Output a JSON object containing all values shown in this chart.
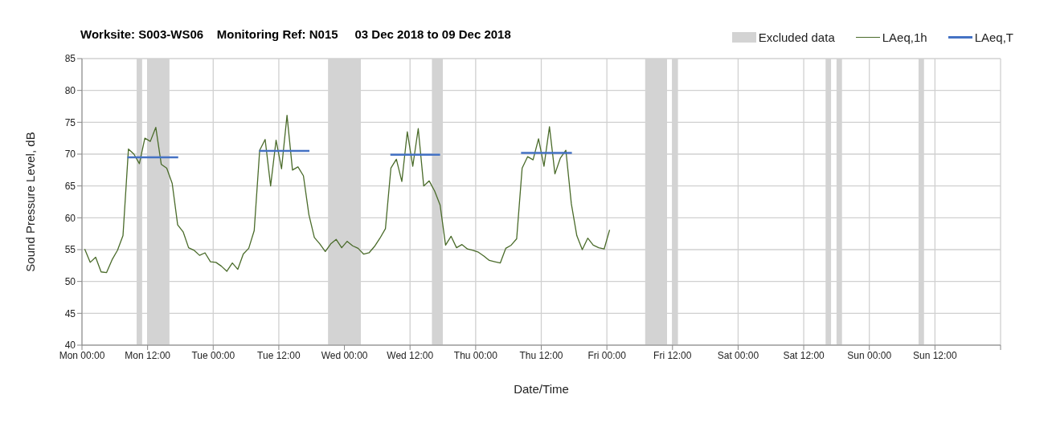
{
  "chart_data": {
    "type": "line",
    "title": "Worksite: S003-WS06    Monitoring Ref: N015     03 Dec 2018 to 09 Dec 2018",
    "xlabel": "Date/Time",
    "ylabel": "Sound Pressure Level, dB",
    "xlim": [
      "2018-12-03T00:00",
      "2018-12-10T00:00"
    ],
    "xticks": [
      {
        "value": "2018-12-03T00:00",
        "label": "Mon 00:00"
      },
      {
        "value": "2018-12-03T12:00",
        "label": "Mon 12:00"
      },
      {
        "value": "2018-12-04T00:00",
        "label": "Tue 00:00"
      },
      {
        "value": "2018-12-04T12:00",
        "label": "Tue 12:00"
      },
      {
        "value": "2018-12-05T00:00",
        "label": "Wed 00:00"
      },
      {
        "value": "2018-12-05T12:00",
        "label": "Wed 12:00"
      },
      {
        "value": "2018-12-06T00:00",
        "label": "Thu 00:00"
      },
      {
        "value": "2018-12-06T12:00",
        "label": "Thu 12:00"
      },
      {
        "value": "2018-12-07T00:00",
        "label": "Fri 00:00"
      },
      {
        "value": "2018-12-07T12:00",
        "label": "Fri 12:00"
      },
      {
        "value": "2018-12-08T00:00",
        "label": "Sat 00:00"
      },
      {
        "value": "2018-12-08T12:00",
        "label": "Sat 12:00"
      },
      {
        "value": "2018-12-09T00:00",
        "label": "Sun 00:00"
      },
      {
        "value": "2018-12-09T12:00",
        "label": "Sun 12:00"
      },
      {
        "value": "2018-12-10T00:00",
        "label": null
      }
    ],
    "ylim": [
      40,
      85
    ],
    "yticks": [
      40,
      45,
      50,
      55,
      60,
      65,
      70,
      75,
      80,
      85
    ],
    "grid": true,
    "legend": "top right",
    "marker": "none",
    "bands": [
      {
        "axis": "x",
        "from": "2018-12-03T10:00",
        "to": "2018-12-03T11:00",
        "label": "Excluded data",
        "color": "#d3d3d3"
      },
      {
        "axis": "x",
        "from": "2018-12-03T12:00",
        "to": "2018-12-03T16:00",
        "color": "#d3d3d3"
      },
      {
        "axis": "x",
        "from": "2018-12-04T21:00",
        "to": "2018-12-05T03:00",
        "color": "#d3d3d3"
      },
      {
        "axis": "x",
        "from": "2018-12-05T16:00",
        "to": "2018-12-05T18:00",
        "color": "#d3d3d3"
      },
      {
        "axis": "x",
        "from": "2018-12-07T07:00",
        "to": "2018-12-07T11:00",
        "color": "#d3d3d3"
      },
      {
        "axis": "x",
        "from": "2018-12-07T12:00",
        "to": "2018-12-07T13:00",
        "color": "#d3d3d3"
      },
      {
        "axis": "x",
        "from": "2018-12-08T16:00",
        "to": "2018-12-08T17:00",
        "color": "#d3d3d3"
      },
      {
        "axis": "x",
        "from": "2018-12-08T18:00",
        "to": "2018-12-08T19:00",
        "color": "#d3d3d3"
      },
      {
        "axis": "x",
        "from": "2018-12-09T09:00",
        "to": "2018-12-09T10:00",
        "color": "#d3d3d3"
      }
    ],
    "series": [
      {
        "name": "LAeq,1h",
        "color": "#4a6b2a",
        "x": [
          "2018-12-03T00:30",
          "2018-12-03T01:30",
          "2018-12-03T02:30",
          "2018-12-03T03:30",
          "2018-12-03T04:30",
          "2018-12-03T05:30",
          "2018-12-03T06:30",
          "2018-12-03T07:30",
          "2018-12-03T08:30",
          "2018-12-03T09:30",
          "2018-12-03T10:30",
          "2018-12-03T11:30",
          "2018-12-03T12:30",
          "2018-12-03T13:30",
          "2018-12-03T14:30",
          "2018-12-03T15:30",
          "2018-12-03T16:30",
          "2018-12-03T17:30",
          "2018-12-03T18:30",
          "2018-12-03T19:30",
          "2018-12-03T20:30",
          "2018-12-03T21:30",
          "2018-12-03T22:30",
          "2018-12-03T23:30",
          "2018-12-04T00:30",
          "2018-12-04T01:30",
          "2018-12-04T02:30",
          "2018-12-04T03:30",
          "2018-12-04T04:30",
          "2018-12-04T05:30",
          "2018-12-04T06:30",
          "2018-12-04T07:30",
          "2018-12-04T08:30",
          "2018-12-04T09:30",
          "2018-12-04T10:30",
          "2018-12-04T11:30",
          "2018-12-04T12:30",
          "2018-12-04T13:30",
          "2018-12-04T14:30",
          "2018-12-04T15:30",
          "2018-12-04T16:30",
          "2018-12-04T17:30",
          "2018-12-04T18:30",
          "2018-12-04T19:30",
          "2018-12-04T20:30",
          "2018-12-04T21:30",
          "2018-12-04T22:30",
          "2018-12-04T23:30",
          "2018-12-05T00:30",
          "2018-12-05T01:30",
          "2018-12-05T02:30",
          "2018-12-05T03:30",
          "2018-12-05T04:30",
          "2018-12-05T05:30",
          "2018-12-05T06:30",
          "2018-12-05T07:30",
          "2018-12-05T08:30",
          "2018-12-05T09:30",
          "2018-12-05T10:30",
          "2018-12-05T11:30",
          "2018-12-05T12:30",
          "2018-12-05T13:30",
          "2018-12-05T14:30",
          "2018-12-05T15:30",
          "2018-12-05T16:30",
          "2018-12-05T17:30",
          "2018-12-05T18:30",
          "2018-12-05T19:30",
          "2018-12-05T20:30",
          "2018-12-05T21:30",
          "2018-12-05T22:30",
          "2018-12-05T23:30",
          "2018-12-06T00:30",
          "2018-12-06T01:30",
          "2018-12-06T02:30",
          "2018-12-06T03:30",
          "2018-12-06T04:30",
          "2018-12-06T05:30",
          "2018-12-06T06:30",
          "2018-12-06T07:30",
          "2018-12-06T08:30",
          "2018-12-06T09:30",
          "2018-12-06T10:30",
          "2018-12-06T11:30",
          "2018-12-06T12:30",
          "2018-12-06T13:30",
          "2018-12-06T14:30",
          "2018-12-06T15:30",
          "2018-12-06T16:30",
          "2018-12-06T17:30",
          "2018-12-06T18:30",
          "2018-12-06T19:30",
          "2018-12-06T20:30",
          "2018-12-06T21:30",
          "2018-12-06T22:30",
          "2018-12-06T23:30",
          "2018-12-07T00:30"
        ],
        "values": [
          55.1,
          53.0,
          53.8,
          51.5,
          51.4,
          53.4,
          54.9,
          57.2,
          70.8,
          70.0,
          68.5,
          72.5,
          72.0,
          74.2,
          68.4,
          67.8,
          65.4,
          58.9,
          57.8,
          55.3,
          54.9,
          54.1,
          54.5,
          53.1,
          53.0,
          52.4,
          51.6,
          52.9,
          51.9,
          54.3,
          55.2,
          58.0,
          70.6,
          72.3,
          65.0,
          72.2,
          67.7,
          76.1,
          67.5,
          68.0,
          66.6,
          60.5,
          56.9,
          55.9,
          54.7,
          55.9,
          56.6,
          55.3,
          56.3,
          55.6,
          55.2,
          54.3,
          54.5,
          55.5,
          56.8,
          58.3,
          67.8,
          69.2,
          65.7,
          73.5,
          68.1,
          74.0,
          65.0,
          65.8,
          64.2,
          62.0,
          55.7,
          57.1,
          55.3,
          55.8,
          55.1,
          54.9,
          54.6,
          54.0,
          53.3,
          53.1,
          52.9,
          55.2,
          55.7,
          56.7,
          67.8,
          69.6,
          69.1,
          72.4,
          68.1,
          74.3,
          66.9,
          69.4,
          70.6,
          62.2,
          57.2,
          55.0,
          56.8,
          55.7,
          55.3,
          55.1,
          58.1
        ]
      },
      {
        "name": "LAeq,T",
        "color": "#4472c4",
        "x": [
          "2018-12-03T08:18",
          "2018-12-03T17:36",
          "2018-12-04T01:00",
          "2018-12-04T08:24",
          "2018-12-04T17:36",
          "2018-12-05T02:00",
          "2018-12-05T08:24",
          "2018-12-05T17:30",
          "2018-12-06T03:00",
          "2018-12-06T08:18",
          "2018-12-06T17:36"
        ],
        "values": [
          69.5,
          69.5,
          null,
          70.5,
          70.5,
          null,
          69.9,
          69.9,
          null,
          70.2,
          70.2
        ]
      }
    ]
  }
}
